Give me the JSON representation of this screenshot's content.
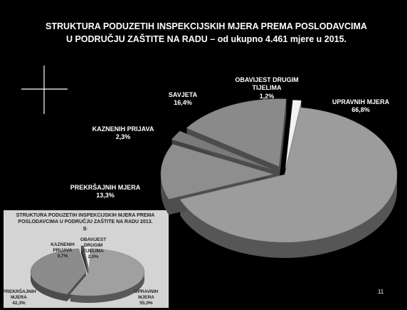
{
  "chart_data": [
    {
      "type": "pie",
      "title": "STRUKTURA PODUZETIH INSPEKCIJSKIH MJERA PREMA POSLODAVCIMA U PODRUČJU ZAŠTITE NA RADU – od ukupno 4.461 mjere u 2015.",
      "categories": [
        "UPRAVNIH MJERA",
        "PREKRŠAJNIH MJERA",
        "KAZNENIH PRIJAVA",
        "SAVJETA",
        "OBAVIJEST DRUGIM TIJELIMA"
      ],
      "values": [
        66.8,
        13.3,
        2.3,
        16.4,
        1.2
      ],
      "value_labels": [
        "66,8%",
        "13,3%",
        "2,3%",
        "16,4%",
        "1,2%"
      ],
      "colors": [
        "#9c9c9c",
        "#8e8e8e",
        "#7a7a7a",
        "#8a8a8a",
        "#f2f2f2"
      ]
    },
    {
      "type": "pie",
      "title": "STRUKTURA PODUZETIH INSPEKCIJSKIH MJERA PREMA POSLODAVCIMA U PODRUČJU ZAŠTITE NA RADU 2013. g.",
      "categories": [
        "UPRAVNIH MJERA",
        "PREKRŠAJNIH MJERA",
        "KAZNENIH PRIJAVA",
        "OBAVIJEST DRUGIM TIJELIMA"
      ],
      "values": [
        55.0,
        42.3,
        0.7,
        2.0
      ],
      "value_labels": [
        "55,0%",
        "42,3%",
        "0,7%",
        "2,0%"
      ],
      "colors": [
        "#a0a0a0",
        "#8c8c8c",
        "#5a5a5a",
        "#e8e8e8"
      ]
    }
  ],
  "slide_number": "11"
}
